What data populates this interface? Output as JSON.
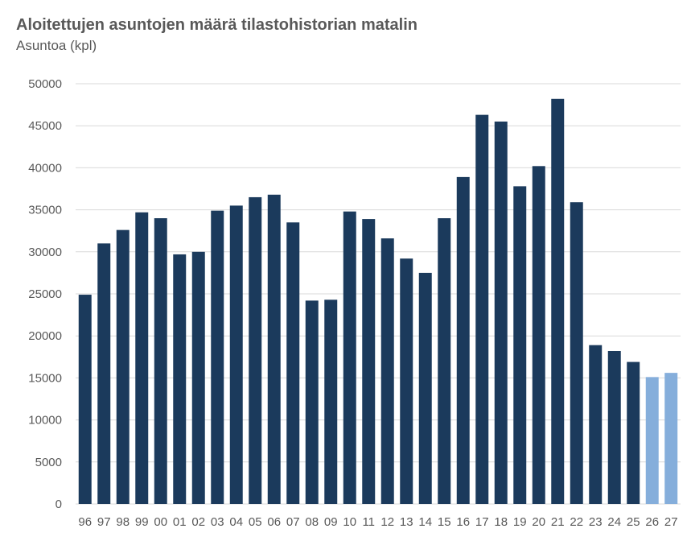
{
  "chart_data": {
    "type": "bar",
    "title": "Aloitettujen asuntojen määrä tilastohistorian matalin",
    "subtitle": "Asuntoa (kpl)",
    "xlabel": "",
    "ylabel": "",
    "ylim": [
      0,
      50000
    ],
    "yticks": [
      "0",
      "5000",
      "10000",
      "15000",
      "20000",
      "25000",
      "30000",
      "35000",
      "40000",
      "45000",
      "50000"
    ],
    "grid": true,
    "categories": [
      "96",
      "97",
      "98",
      "99",
      "00",
      "01",
      "02",
      "03",
      "04",
      "05",
      "06",
      "07",
      "08",
      "09",
      "10",
      "11",
      "12",
      "13",
      "14",
      "15",
      "16",
      "17",
      "18",
      "19",
      "20",
      "21",
      "22",
      "23",
      "24",
      "25",
      "26",
      "27"
    ],
    "values": [
      24900,
      31000,
      32600,
      34700,
      34000,
      29700,
      30000,
      34900,
      35500,
      36500,
      36800,
      33500,
      24200,
      24300,
      34800,
      33900,
      31600,
      29200,
      27500,
      34000,
      38900,
      46300,
      45500,
      37800,
      40200,
      48200,
      35900,
      18900,
      18200,
      16900,
      15100,
      15600
    ],
    "forecast_from_index": 30,
    "colors": {
      "actual": "#1b3a5c",
      "forecast": "#85aedb",
      "grid": "#d9d9d9",
      "text": "#595959"
    }
  }
}
